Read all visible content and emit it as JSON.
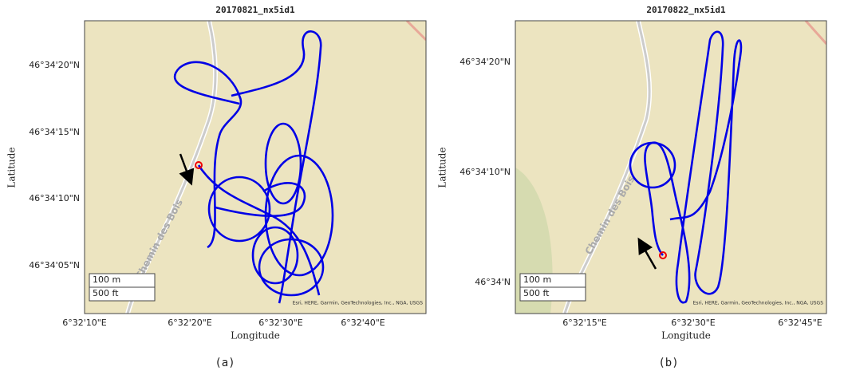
{
  "panels": [
    {
      "title": "20170821_nx5id1",
      "yticks": [
        "46°34'20\"N",
        "46°34'15\"N",
        "46°34'10\"N",
        "46°34'05\"N"
      ],
      "xticks": [
        "6°32'10\"E",
        "6°32'20\"E",
        "6°32'30\"E",
        "6°32'40\"E"
      ],
      "xlabel": "Longitude",
      "ylabel": "Latitude",
      "street": "Chemin des Bois",
      "scale": [
        "100 m",
        "500 ft"
      ],
      "attribution": "Esri, HERE, Garmin, GeoTechnologies, Inc., NGA, USGS",
      "caption": "(a)"
    },
    {
      "title": "20170822_nx5id1",
      "yticks": [
        "46°34'20\"N",
        "46°34'10\"N",
        "46°34'N"
      ],
      "xticks": [
        "6°32'15\"E",
        "6°32'30\"E",
        "6°32'45\"E"
      ],
      "xlabel": "Longitude",
      "ylabel": "Latitude",
      "street": "Chemin des Bois",
      "scale": [
        "100 m",
        "500 ft"
      ],
      "attribution": "Esri, HERE, Garmin, GeoTechnologies, Inc., NGA, USGS",
      "caption": "(b)"
    }
  ]
}
